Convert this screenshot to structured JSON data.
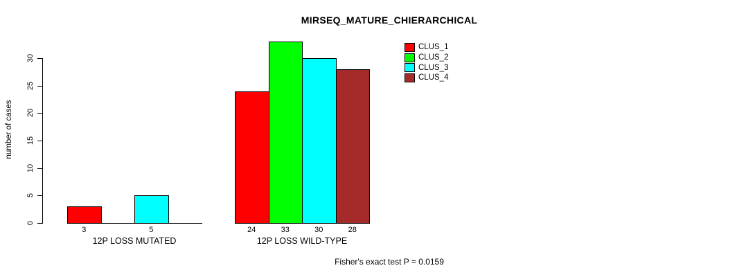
{
  "figure": {
    "background": "#ffffff",
    "axis_color": "#000000",
    "bar_border_color": "#000000"
  },
  "chart_data": {
    "type": "bar",
    "title": "MIRSEQ_MATURE_CHIERARCHICAL",
    "ylabel": "number of cases",
    "xlabel": "",
    "ylim": [
      0,
      33
    ],
    "yticks": [
      0,
      5,
      10,
      15,
      20,
      25,
      30
    ],
    "grid": false,
    "legend_position": "top-right",
    "categories": [
      "12P LOSS MUTATED",
      "12P LOSS WILD-TYPE"
    ],
    "series": [
      {
        "name": "CLUS_1",
        "color": "#FF0000",
        "values": [
          3,
          24
        ]
      },
      {
        "name": "CLUS_2",
        "color": "#00FF00",
        "values": [
          0,
          33
        ]
      },
      {
        "name": "CLUS_3",
        "color": "#00FFFF",
        "values": [
          5,
          30
        ]
      },
      {
        "name": "CLUS_4",
        "color": "#A52A2A",
        "values": [
          0,
          28
        ]
      }
    ],
    "bar_value_labels": [
      [
        "3",
        "",
        "5",
        ""
      ],
      [
        "24",
        "33",
        "30",
        "28"
      ]
    ],
    "note": "Fisher's exact test P = 0.0159"
  }
}
